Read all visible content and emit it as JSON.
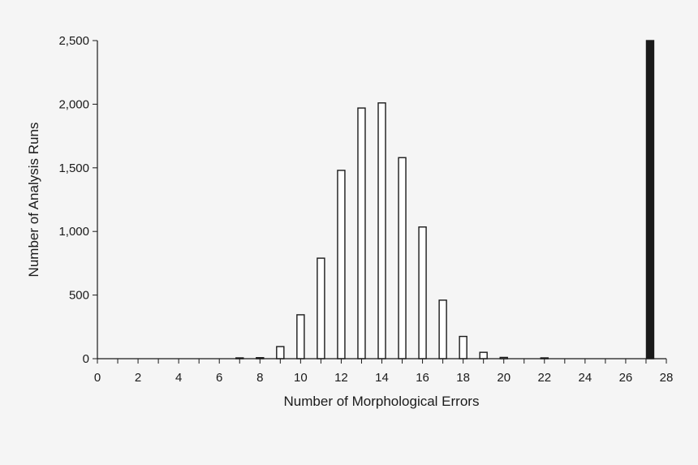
{
  "chart_data": {
    "type": "bar",
    "title": "",
    "xlabel": "Number of Morphological Errors",
    "ylabel": "Number of Analysis Runs",
    "xlim": [
      0,
      28
    ],
    "ylim": [
      0,
      2500
    ],
    "x_ticks": [
      0,
      2,
      4,
      6,
      8,
      10,
      12,
      14,
      16,
      18,
      20,
      22,
      24,
      26,
      28
    ],
    "y_ticks": [
      0,
      500,
      1000,
      1500,
      2000,
      2500
    ],
    "y_tick_labels": [
      "0",
      "500",
      "1,000",
      "1,500",
      "2,000",
      "2,500"
    ],
    "grid": false,
    "legend": "none",
    "series": [
      {
        "fill": "#ffffff",
        "stroke": "#1a1a1a",
        "x": [
          7,
          8,
          9,
          10,
          11,
          12,
          13,
          14,
          15,
          16,
          17,
          18,
          19,
          20,
          22
        ],
        "values": [
          3,
          8,
          95,
          345,
          790,
          1480,
          1970,
          2010,
          1580,
          1035,
          460,
          175,
          50,
          10,
          3
        ]
      },
      {
        "fill": "#1a1a1a",
        "stroke": "#1a1a1a",
        "x": [
          27.2
        ],
        "values": [
          2500
        ]
      }
    ]
  }
}
